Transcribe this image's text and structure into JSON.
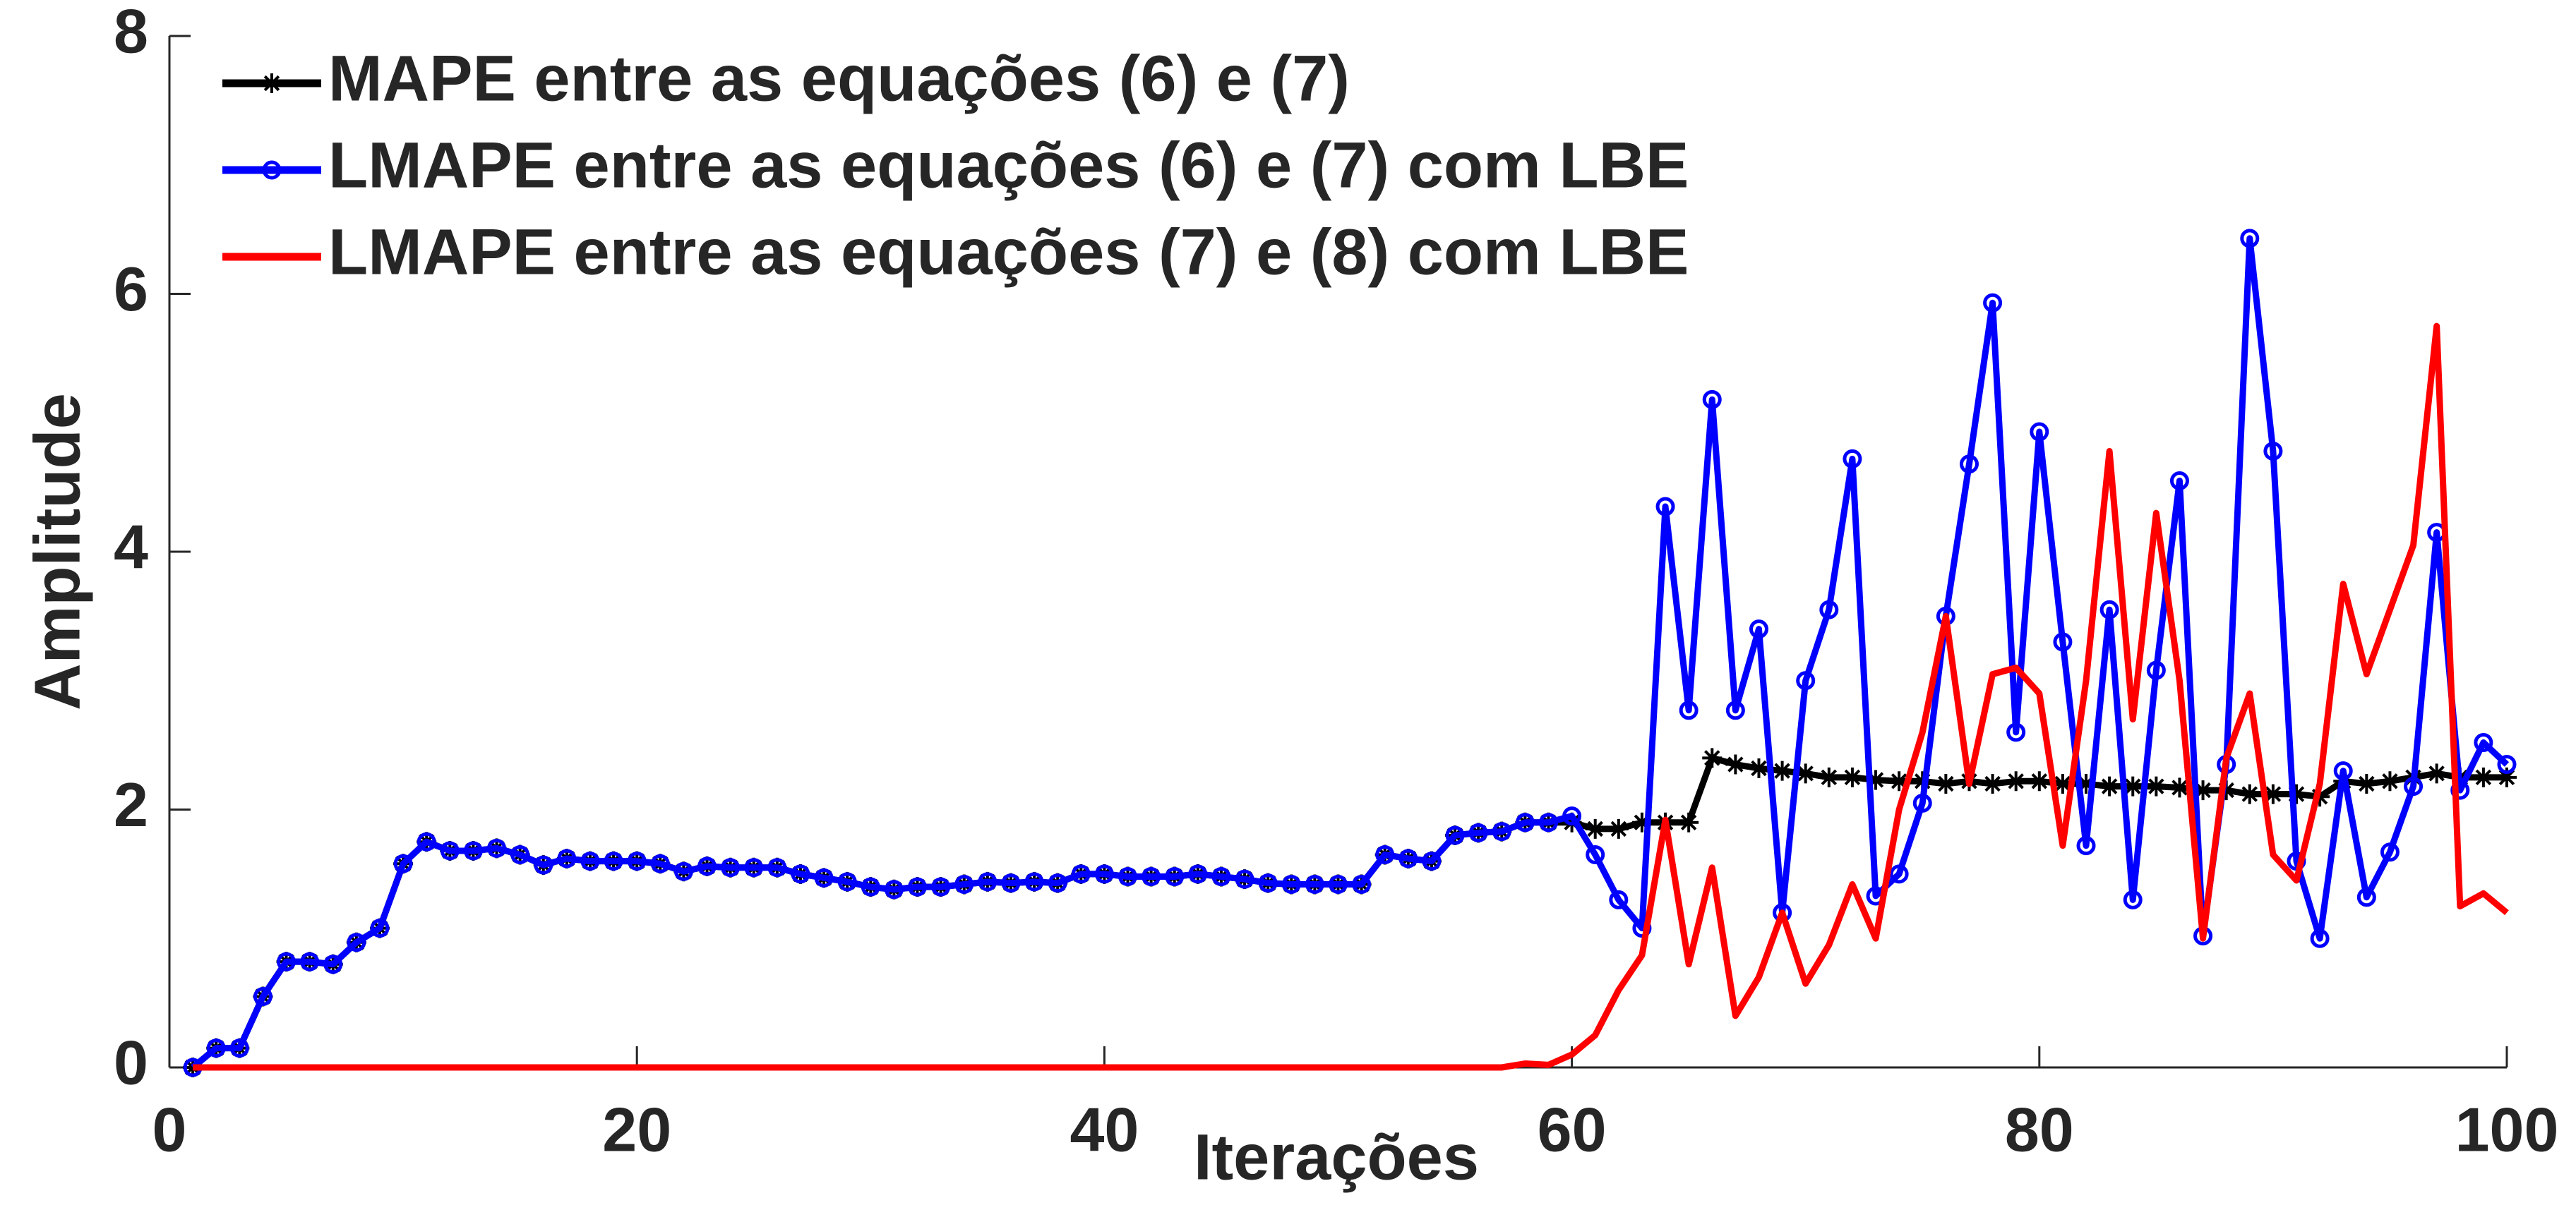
{
  "chart_data": {
    "type": "line",
    "xlabel": "Iterações",
    "ylabel": "Amplitude",
    "x": [
      1,
      2,
      3,
      4,
      5,
      6,
      7,
      8,
      9,
      10,
      11,
      12,
      13,
      14,
      15,
      16,
      17,
      18,
      19,
      20,
      21,
      22,
      23,
      24,
      25,
      26,
      27,
      28,
      29,
      30,
      31,
      32,
      33,
      34,
      35,
      36,
      37,
      38,
      39,
      40,
      41,
      42,
      43,
      44,
      45,
      46,
      47,
      48,
      49,
      50,
      51,
      52,
      53,
      54,
      55,
      56,
      57,
      58,
      59,
      60,
      61,
      62,
      63,
      64,
      65,
      66,
      67,
      68,
      69,
      70,
      71,
      72,
      73,
      74,
      75,
      76,
      77,
      78,
      79,
      80,
      81,
      82,
      83,
      84,
      85,
      86,
      87,
      88,
      89,
      90,
      91,
      92,
      93,
      94,
      95,
      96,
      97,
      98,
      99,
      100
    ],
    "series": [
      {
        "name": "MAPE entre as equações (6) e (7)",
        "color": "#000000",
        "marker": "star",
        "values": [
          0,
          0.15,
          0.15,
          0.55,
          0.82,
          0.82,
          0.8,
          0.97,
          1.08,
          1.58,
          1.75,
          1.68,
          1.68,
          1.7,
          1.65,
          1.57,
          1.62,
          1.6,
          1.6,
          1.6,
          1.58,
          1.52,
          1.56,
          1.55,
          1.55,
          1.55,
          1.5,
          1.47,
          1.44,
          1.4,
          1.38,
          1.4,
          1.4,
          1.42,
          1.44,
          1.43,
          1.44,
          1.43,
          1.5,
          1.5,
          1.48,
          1.48,
          1.48,
          1.5,
          1.48,
          1.46,
          1.43,
          1.42,
          1.42,
          1.42,
          1.42,
          1.65,
          1.62,
          1.6,
          1.8,
          1.82,
          1.83,
          1.9,
          1.9,
          1.9,
          1.85,
          1.85,
          1.9,
          1.9,
          1.9,
          2.4,
          2.35,
          2.32,
          2.3,
          2.28,
          2.25,
          2.25,
          2.23,
          2.22,
          2.22,
          2.2,
          2.22,
          2.2,
          2.22,
          2.22,
          2.2,
          2.2,
          2.18,
          2.18,
          2.18,
          2.17,
          2.15,
          2.15,
          2.12,
          2.12,
          2.12,
          2.1,
          2.22,
          2.2,
          2.22,
          2.25,
          2.28,
          2.25,
          2.25,
          2.25
        ]
      },
      {
        "name": "LMAPE entre as equações (6) e (7) com LBE",
        "color": "#0000ff",
        "marker": "circle",
        "values": [
          0,
          0.15,
          0.15,
          0.55,
          0.82,
          0.82,
          0.8,
          0.97,
          1.08,
          1.58,
          1.75,
          1.68,
          1.68,
          1.7,
          1.65,
          1.57,
          1.62,
          1.6,
          1.6,
          1.6,
          1.58,
          1.52,
          1.56,
          1.55,
          1.55,
          1.55,
          1.5,
          1.47,
          1.44,
          1.4,
          1.38,
          1.4,
          1.4,
          1.42,
          1.44,
          1.43,
          1.44,
          1.43,
          1.5,
          1.5,
          1.48,
          1.48,
          1.48,
          1.5,
          1.48,
          1.46,
          1.43,
          1.42,
          1.42,
          1.42,
          1.42,
          1.65,
          1.62,
          1.6,
          1.8,
          1.82,
          1.83,
          1.9,
          1.9,
          1.95,
          1.65,
          1.3,
          1.08,
          4.35,
          2.77,
          5.18,
          2.77,
          3.4,
          1.2,
          3.0,
          3.55,
          4.72,
          1.33,
          1.5,
          2.05,
          3.5,
          4.68,
          5.93,
          2.6,
          4.93,
          3.3,
          1.72,
          3.55,
          1.3,
          3.08,
          4.55,
          1.02,
          2.35,
          6.43,
          4.78,
          1.6,
          1.0,
          2.3,
          1.32,
          1.67,
          2.18,
          4.15,
          2.15,
          2.52,
          2.35
        ]
      },
      {
        "name": "LMAPE entre as equações (7) e (8) com LBE",
        "color": "#ff0000",
        "marker": "none",
        "values": [
          0,
          0,
          0,
          0,
          0,
          0,
          0,
          0,
          0,
          0,
          0,
          0,
          0,
          0,
          0,
          0,
          0,
          0,
          0,
          0,
          0,
          0,
          0,
          0,
          0,
          0,
          0,
          0,
          0,
          0,
          0,
          0,
          0,
          0,
          0,
          0,
          0,
          0,
          0,
          0,
          0,
          0,
          0,
          0,
          0,
          0,
          0,
          0,
          0,
          0,
          0,
          0,
          0,
          0,
          0,
          0,
          0,
          0.03,
          0.02,
          0.1,
          0.25,
          0.6,
          0.87,
          1.92,
          0.8,
          1.55,
          0.4,
          0.7,
          1.2,
          0.65,
          0.95,
          1.42,
          1.0,
          2.0,
          2.6,
          3.5,
          2.2,
          3.05,
          3.1,
          2.9,
          1.72,
          3.0,
          4.78,
          2.7,
          4.3,
          3.0,
          1.0,
          2.4,
          2.9,
          1.65,
          1.45,
          2.2,
          3.75,
          3.05,
          3.55,
          4.05,
          5.75,
          1.25,
          1.35,
          1.2
        ]
      }
    ],
    "xlim": [
      0,
      100
    ],
    "xticks": [
      0,
      20,
      40,
      60,
      80,
      100
    ],
    "ylim": [
      0,
      8
    ],
    "yticks": [
      0,
      2,
      4,
      6,
      8
    ],
    "grid": false,
    "legend": "northwest"
  }
}
